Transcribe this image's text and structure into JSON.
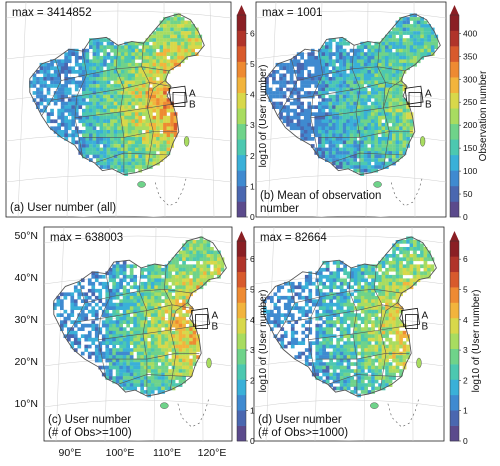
{
  "panels": [
    {
      "id": "a",
      "max_text": "max = 3414852",
      "caption": [
        "(a) User number (all)"
      ],
      "colorbar": {
        "label": "log10 of (User number)",
        "ticks": [
          "0",
          "1",
          "2",
          "3",
          "4",
          "5",
          "6"
        ],
        "range": [
          0,
          6.6
        ]
      },
      "level": 0.62,
      "spread": 1.0,
      "density": 0.92
    },
    {
      "id": "b",
      "max_text": "max = 1001",
      "caption": [
        "(b) Mean of observation",
        "number"
      ],
      "colorbar": {
        "label": "Observation number",
        "ticks": [
          "0",
          "50",
          "100",
          "150",
          "200",
          "250",
          "300",
          "350",
          "400"
        ],
        "range": [
          0,
          440
        ]
      },
      "level": 0.34,
      "spread": 1.0,
      "density": 0.92
    },
    {
      "id": "c",
      "max_text": "max = 638003",
      "caption": [
        "(c) User number",
        "(# of Obs>=100)"
      ],
      "colorbar": {
        "label": "log10 of (User number)",
        "ticks": [
          "0",
          "1",
          "2",
          "3",
          "4",
          "5",
          "6"
        ],
        "range": [
          0,
          6.6
        ]
      },
      "level": 0.56,
      "spread": 0.78,
      "density": 0.85
    },
    {
      "id": "d",
      "max_text": "max = 82664",
      "caption": [
        "(d) User number",
        "(# of Obs>=1000)"
      ],
      "colorbar": {
        "label": "log10 of (User number)",
        "ticks": [
          "0",
          "1",
          "2",
          "3",
          "4",
          "5",
          "6"
        ],
        "range": [
          0,
          6.6
        ]
      },
      "level": 0.5,
      "spread": 0.72,
      "density": 0.82
    }
  ],
  "axes": {
    "lat_labels": [
      "50°N",
      "40°N",
      "30°N",
      "20°N",
      "10°N"
    ],
    "lon_labels": [
      "90°E",
      "100°E",
      "110°E",
      "120°E"
    ]
  },
  "region_labels": [
    "A",
    "B"
  ],
  "colors": {
    "palette": [
      "#5b4a8c",
      "#4a67b0",
      "#3f8ad0",
      "#3ab0d8",
      "#4cc8b0",
      "#6fd38a",
      "#a8dc60",
      "#d8d84a",
      "#f2b43c",
      "#ee8a32",
      "#d85a2c",
      "#b0342a",
      "#8a1f24"
    ],
    "border": "#555555",
    "grid": "#cfcfcf"
  }
}
